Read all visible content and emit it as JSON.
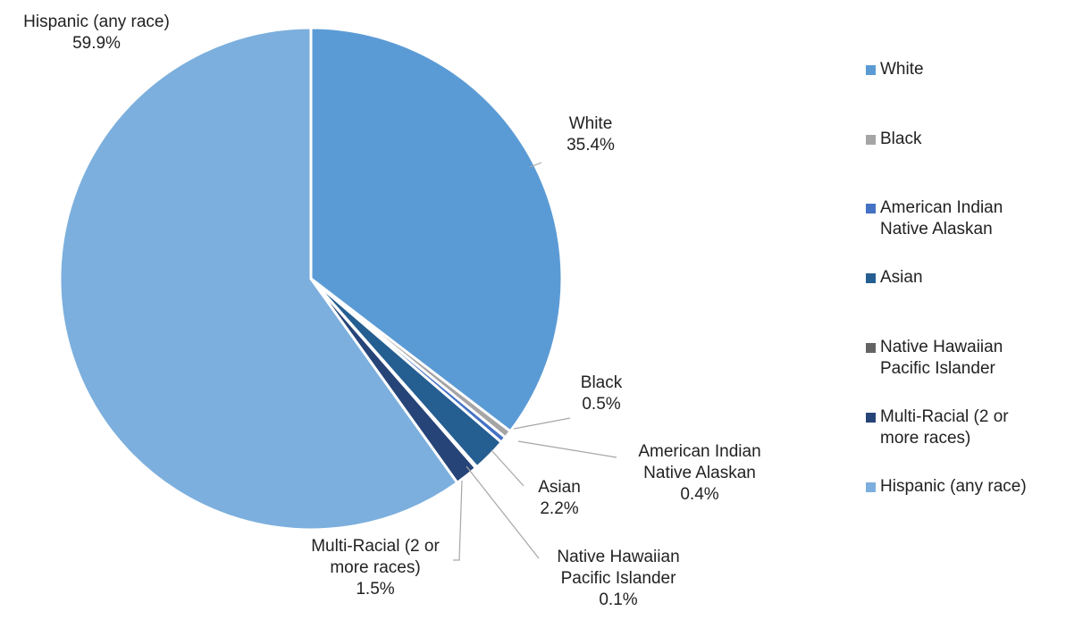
{
  "chart_data": {
    "type": "pie",
    "title": "",
    "slices": [
      {
        "label": "White",
        "value": 35.4,
        "display": "35.4%",
        "color": "#5b9bd5",
        "label_lines": [
          "White"
        ]
      },
      {
        "label": "Black",
        "value": 0.5,
        "display": "0.5%",
        "color": "#a5a5a5",
        "label_lines": [
          "Black"
        ]
      },
      {
        "label": "American Indian Native Alaskan",
        "value": 0.4,
        "display": "0.4%",
        "color": "#4472c4",
        "label_lines": [
          "American Indian",
          "Native Alaskan"
        ]
      },
      {
        "label": "Asian",
        "value": 2.2,
        "display": "2.2%",
        "color": "#255e91",
        "label_lines": [
          "Asian"
        ]
      },
      {
        "label": "Native Hawaiian Pacific Islander",
        "value": 0.1,
        "display": "0.1%",
        "color": "#636363",
        "label_lines": [
          "Native Hawaiian",
          "Pacific Islander"
        ]
      },
      {
        "label": "Multi-Racial (2 or more races)",
        "value": 1.5,
        "display": "1.5%",
        "color": "#264478",
        "label_lines": [
          "Multi-Racial (2 or",
          "more races)"
        ]
      },
      {
        "label": "Hispanic (any race)",
        "value": 59.9,
        "display": "59.9%",
        "color": "#7cafdd",
        "label_lines": [
          "Hispanic (any race)"
        ]
      }
    ],
    "legend": {
      "position": "right",
      "items": [
        {
          "lines": [
            "White"
          ],
          "color": "#5b9bd5"
        },
        {
          "lines": [
            "Black"
          ],
          "color": "#a5a5a5"
        },
        {
          "lines": [
            "American Indian",
            "Native Alaskan"
          ],
          "color": "#4472c4"
        },
        {
          "lines": [
            "Asian"
          ],
          "color": "#255e91"
        },
        {
          "lines": [
            "Native Hawaiian",
            "Pacific Islander"
          ],
          "color": "#636363"
        },
        {
          "lines": [
            "Multi-Racial (2 or",
            "more races)"
          ],
          "color": "#264478"
        },
        {
          "lines": [
            "Hispanic (any race)"
          ],
          "color": "#7cafdd"
        }
      ]
    }
  }
}
